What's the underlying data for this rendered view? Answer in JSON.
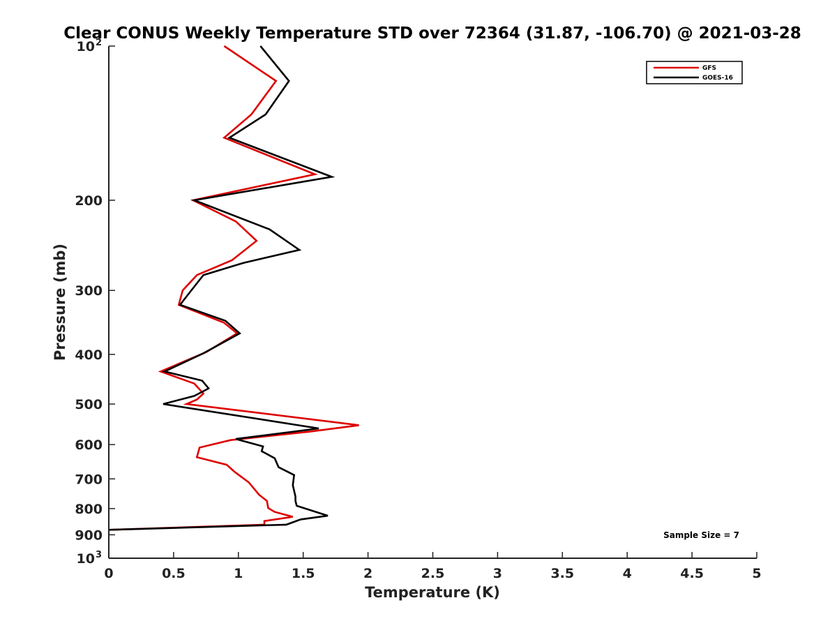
{
  "chart_data": {
    "type": "line",
    "title": "Clear CONUS Weekly Temperature STD over 72364 (31.87, -106.70) @ 2021-03-28",
    "xlabel": "Temperature (K)",
    "ylabel": "Pressure (mb)",
    "xlim": [
      0,
      5
    ],
    "ylim": [
      1000,
      100
    ],
    "y_scale": "log",
    "y_reversed": true,
    "grid": false,
    "legend_position": "top-right",
    "annotation": "Sample Size = 7",
    "x_ticks": [
      {
        "value": 0,
        "label": "0"
      },
      {
        "value": 0.5,
        "label": "0.5"
      },
      {
        "value": 1,
        "label": "1"
      },
      {
        "value": 1.5,
        "label": "1.5"
      },
      {
        "value": 2,
        "label": "2"
      },
      {
        "value": 2.5,
        "label": "2.5"
      },
      {
        "value": 3,
        "label": "3"
      },
      {
        "value": 3.5,
        "label": "3.5"
      },
      {
        "value": 4,
        "label": "4"
      },
      {
        "value": 4.5,
        "label": "4.5"
      },
      {
        "value": 5,
        "label": "5"
      }
    ],
    "y_ticks": [
      {
        "value": 100,
        "base": "10",
        "exp": "2"
      },
      {
        "value": 200,
        "label": "200"
      },
      {
        "value": 300,
        "label": "300"
      },
      {
        "value": 400,
        "label": "400"
      },
      {
        "value": 500,
        "label": "500"
      },
      {
        "value": 600,
        "label": "600"
      },
      {
        "value": 700,
        "label": "700"
      },
      {
        "value": 800,
        "label": "800"
      },
      {
        "value": 900,
        "label": "900"
      },
      {
        "value": 1000,
        "base": "10",
        "exp": "3"
      }
    ],
    "series": [
      {
        "name": "GFS",
        "color": "#dd0000",
        "points": [
          [
            0.89,
            100
          ],
          [
            1.29,
            117
          ],
          [
            1.1,
            136
          ],
          [
            0.89,
            151
          ],
          [
            1.59,
            178
          ],
          [
            0.65,
            200
          ],
          [
            0.98,
            220
          ],
          [
            1.14,
            240
          ],
          [
            0.95,
            262
          ],
          [
            0.68,
            280
          ],
          [
            0.57,
            300
          ],
          [
            0.54,
            320
          ],
          [
            0.89,
            347
          ],
          [
            0.99,
            364
          ],
          [
            0.75,
            396
          ],
          [
            0.4,
            432
          ],
          [
            0.66,
            456
          ],
          [
            0.73,
            477
          ],
          [
            0.68,
            490
          ],
          [
            0.6,
            500
          ],
          [
            1.93,
            550
          ],
          [
            1.55,
            566
          ],
          [
            0.94,
            588
          ],
          [
            0.7,
            608
          ],
          [
            0.68,
            635
          ],
          [
            0.91,
            657
          ],
          [
            0.97,
            678
          ],
          [
            1.08,
            711
          ],
          [
            1.16,
            752
          ],
          [
            1.22,
            773
          ],
          [
            1.23,
            798
          ],
          [
            1.28,
            812
          ],
          [
            1.42,
            830
          ],
          [
            1.2,
            846
          ],
          [
            1.2,
            860
          ],
          [
            0.0,
            880
          ]
        ]
      },
      {
        "name": "GOES-16",
        "color": "#000000",
        "points": [
          [
            1.17,
            100
          ],
          [
            1.39,
            117
          ],
          [
            1.21,
            136
          ],
          [
            0.93,
            151
          ],
          [
            1.72,
            180
          ],
          [
            0.66,
            200
          ],
          [
            1.24,
            228
          ],
          [
            1.47,
            250
          ],
          [
            1.04,
            265
          ],
          [
            0.73,
            280
          ],
          [
            0.61,
            306
          ],
          [
            0.55,
            320
          ],
          [
            0.9,
            344
          ],
          [
            1.01,
            364
          ],
          [
            0.73,
            398
          ],
          [
            0.43,
            432
          ],
          [
            0.72,
            450
          ],
          [
            0.77,
            466
          ],
          [
            0.66,
            482
          ],
          [
            0.42,
            500
          ],
          [
            1.62,
            558
          ],
          [
            0.98,
            585
          ],
          [
            1.19,
            605
          ],
          [
            1.18,
            618
          ],
          [
            1.28,
            638
          ],
          [
            1.31,
            664
          ],
          [
            1.43,
            688
          ],
          [
            1.42,
            720
          ],
          [
            1.44,
            758
          ],
          [
            1.44,
            773
          ],
          [
            1.45,
            790
          ],
          [
            1.69,
            826
          ],
          [
            1.48,
            840
          ],
          [
            1.37,
            860
          ],
          [
            0.0,
            880
          ]
        ]
      }
    ]
  }
}
